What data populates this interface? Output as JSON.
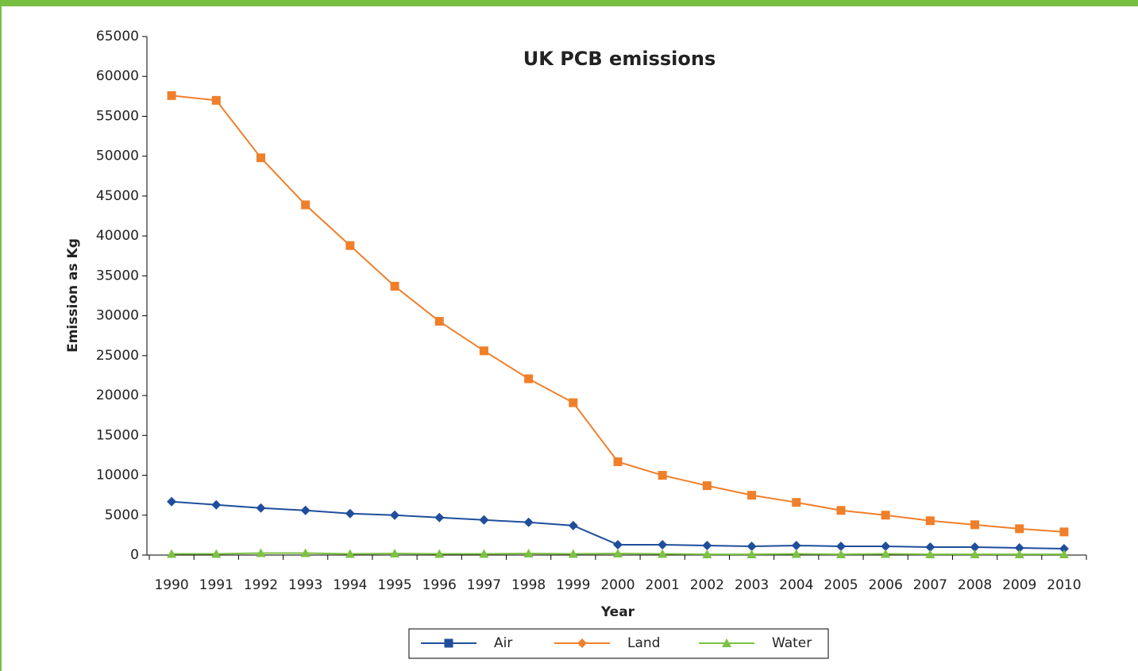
{
  "chart_data": {
    "type": "line",
    "title": "UK PCB emissions",
    "x_label": "Year",
    "y_label": "Emission as Kg",
    "categories": [
      "1990",
      "1991",
      "1992",
      "1993",
      "1994",
      "1995",
      "1996",
      "1997",
      "1998",
      "1999",
      "2000",
      "2001",
      "2002",
      "2003",
      "2004",
      "2005",
      "2006",
      "2007",
      "2008",
      "2009",
      "2010"
    ],
    "series": [
      {
        "name": "Air",
        "color": "#1f4e9c",
        "values": [
          6700,
          6300,
          5900,
          5600,
          5200,
          5000,
          4700,
          4400,
          4100,
          3700,
          1300,
          1300,
          1200,
          1100,
          1200,
          1100,
          1100,
          1000,
          1000,
          900,
          800
        ]
      },
      {
        "name": "Land",
        "color": "#f07f2a",
        "values": [
          57600,
          57000,
          49800,
          43900,
          38800,
          33700,
          29300,
          25600,
          22100,
          19100,
          11700,
          10000,
          8700,
          7500,
          6600,
          5600,
          5000,
          4300,
          3800,
          3300,
          2900
        ]
      },
      {
        "name": "Water",
        "color": "#7dc242",
        "values": [
          150,
          150,
          250,
          250,
          150,
          200,
          150,
          150,
          200,
          150,
          200,
          150,
          100,
          100,
          150,
          100,
          150,
          100,
          100,
          100,
          100
        ]
      }
    ],
    "ylim": [
      0,
      65000
    ],
    "yticks": [
      0,
      5000,
      10000,
      15000,
      20000,
      25000,
      30000,
      35000,
      40000,
      45000,
      50000,
      55000,
      60000,
      65000
    ],
    "legend": "bottom"
  }
}
